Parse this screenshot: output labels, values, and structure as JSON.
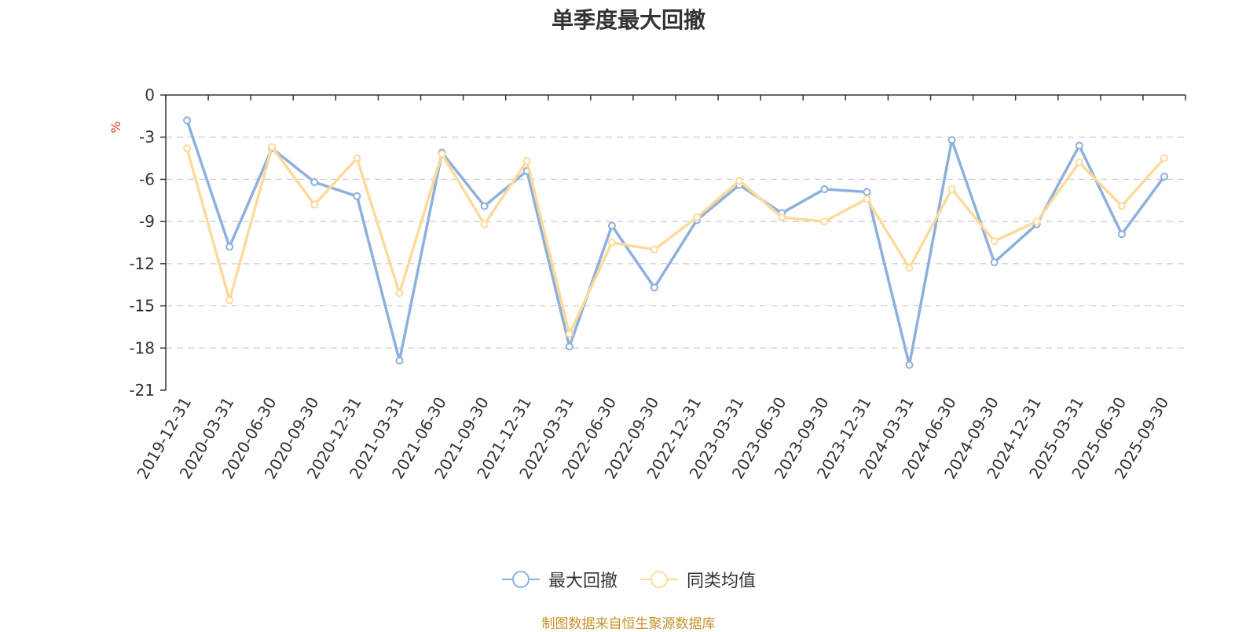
{
  "colors": {
    "series_1": "#8eb0dc",
    "series_2": "#fcdb9a",
    "axis": "#333333",
    "grid": "#cccccc",
    "unit": "#e62e2e",
    "source": "#c8922a"
  },
  "legend_icon": "circle-line-icon",
  "source_note": "制图数据来自恒生聚源数据库",
  "chart_data": {
    "type": "line",
    "title": "单季度最大回撤",
    "ylabel": "%",
    "ylim": [
      -21,
      0
    ],
    "yticks": [
      0,
      -3,
      -6,
      -9,
      -12,
      -15,
      -18,
      -21
    ],
    "grid": true,
    "legend_position": "bottom",
    "categories": [
      "2019-12-31",
      "2020-03-31",
      "2020-06-30",
      "2020-09-30",
      "2020-12-31",
      "2021-03-31",
      "2021-06-30",
      "2021-09-30",
      "2021-12-31",
      "2022-03-31",
      "2022-06-30",
      "2022-09-30",
      "2022-12-31",
      "2023-03-31",
      "2023-06-30",
      "2023-09-30",
      "2023-12-31",
      "2024-03-31",
      "2024-06-30",
      "2024-09-30",
      "2024-12-31",
      "2025-03-31",
      "2025-06-30",
      "2025-09-30"
    ],
    "series": [
      {
        "name": "最大回撤",
        "values": [
          -1.8,
          -10.8,
          -3.8,
          -6.2,
          -7.2,
          -18.9,
          -4.1,
          -7.9,
          -5.4,
          -17.9,
          -9.3,
          -13.7,
          -8.9,
          -6.4,
          -8.4,
          -6.7,
          -6.9,
          -19.2,
          -3.2,
          -11.9,
          -9.2,
          -3.6,
          -9.9,
          -5.8
        ]
      },
      {
        "name": "同类均值",
        "values": [
          -3.8,
          -14.6,
          -3.7,
          -7.8,
          -4.5,
          -14.1,
          -4.2,
          -9.2,
          -4.7,
          -17.0,
          -10.5,
          -11.0,
          -8.7,
          -6.1,
          -8.7,
          -9.0,
          -7.4,
          -12.3,
          -6.7,
          -10.4,
          -9.0,
          -4.8,
          -7.9,
          -4.5
        ]
      }
    ]
  }
}
